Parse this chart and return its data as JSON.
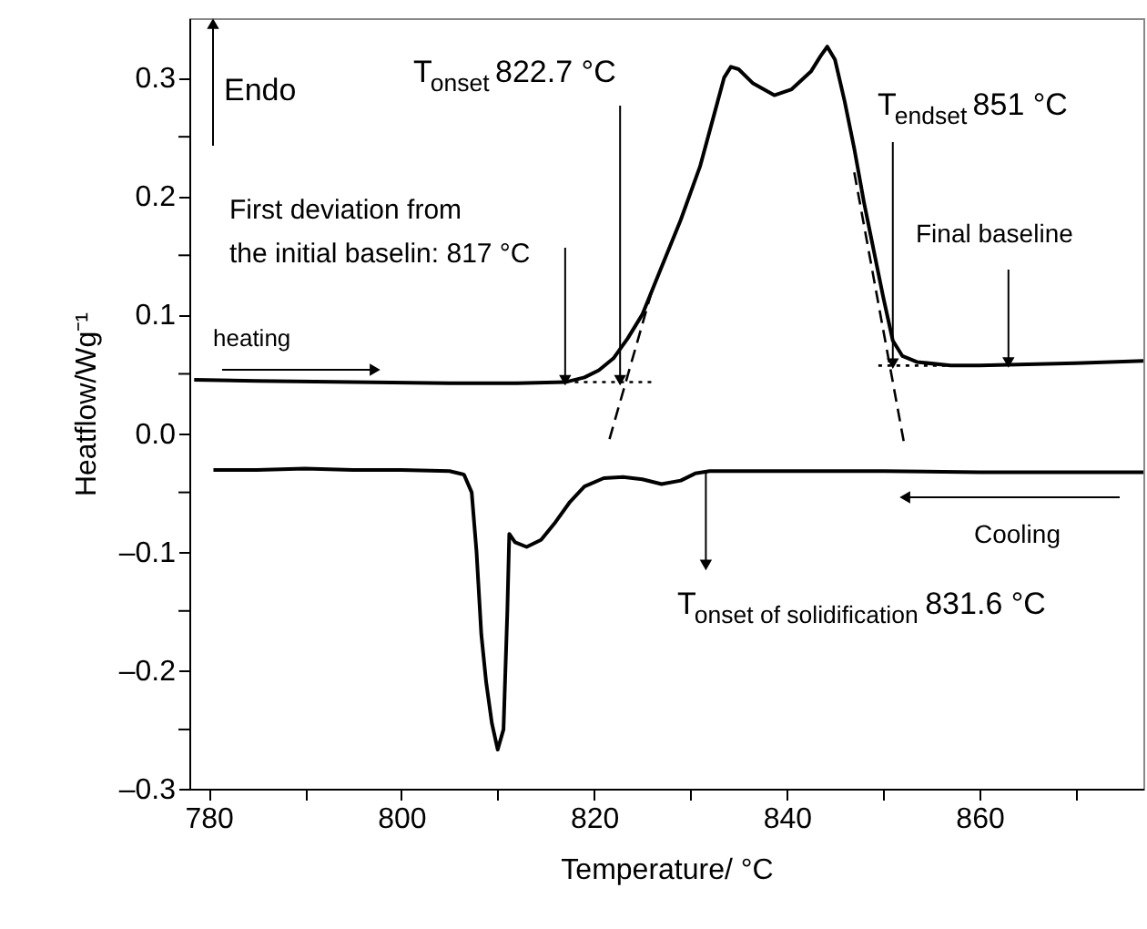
{
  "chart_data": {
    "type": "line",
    "xlabel": "Temperature/ °C",
    "ylabel": "Heatflow/Wg⁻¹",
    "xlim": [
      778,
      877
    ],
    "ylim": [
      -0.3,
      0.35
    ],
    "xticks": [
      780,
      {
        "value": 790,
        "label": null
      },
      800,
      {
        "value": 810,
        "label": null
      },
      820,
      {
        "value": 830,
        "label": null
      },
      840,
      {
        "value": 850,
        "label": null
      },
      860,
      {
        "value": 870,
        "label": null
      }
    ],
    "yticks": [
      {
        "value": -0.3,
        "label": "–0.3"
      },
      {
        "value": -0.25,
        "label": null
      },
      {
        "value": -0.2,
        "label": "–0.2"
      },
      {
        "value": -0.15,
        "label": null
      },
      {
        "value": -0.1,
        "label": "–0.1"
      },
      {
        "value": -0.05,
        "label": null
      },
      {
        "value": 0.0,
        "label": "0.0"
      },
      {
        "value": 0.05,
        "label": null
      },
      {
        "value": 0.1,
        "label": "0.1"
      },
      {
        "value": 0.15,
        "label": null
      },
      {
        "value": 0.2,
        "label": "0.2"
      },
      {
        "value": 0.25,
        "label": null
      },
      {
        "value": 0.3,
        "label": "0.3"
      }
    ],
    "grid": false,
    "series": [
      {
        "color": "#000000",
        "line_style": "solid",
        "x": [
          778.5,
          785,
          795,
          805,
          812,
          817,
          819,
          820.5,
          822,
          823.5,
          825,
          827,
          829,
          831,
          832.5,
          833.5,
          834.2,
          835,
          836.5,
          838.7,
          840.5,
          842.5,
          843.5,
          844.2,
          845,
          846,
          847,
          848,
          849,
          850,
          851,
          852,
          853.5,
          857,
          860,
          865,
          870,
          877
        ],
        "values": [
          0.045,
          0.044,
          0.043,
          0.042,
          0.042,
          0.043,
          0.047,
          0.053,
          0.063,
          0.08,
          0.1,
          0.14,
          0.18,
          0.225,
          0.27,
          0.3,
          0.309,
          0.307,
          0.295,
          0.285,
          0.29,
          0.305,
          0.318,
          0.326,
          0.315,
          0.28,
          0.24,
          0.195,
          0.155,
          0.115,
          0.078,
          0.065,
          0.06,
          0.057,
          0.057,
          0.058,
          0.059,
          0.061
        ]
      },
      {
        "color": "#000000",
        "line_style": "solid",
        "x": [
          780.5,
          785,
          790,
          795,
          800,
          805,
          806.5,
          807.3,
          807.8,
          808.3,
          808.8,
          809.4,
          810,
          810.6,
          811,
          811.2,
          811.8,
          813,
          814.5,
          816,
          817.5,
          819,
          821,
          823,
          825,
          827,
          829,
          830.5,
          832,
          840,
          850,
          860,
          870,
          877
        ],
        "values": [
          -0.031,
          -0.031,
          -0.03,
          -0.031,
          -0.031,
          -0.032,
          -0.035,
          -0.05,
          -0.1,
          -0.17,
          -0.21,
          -0.245,
          -0.267,
          -0.25,
          -0.15,
          -0.085,
          -0.092,
          -0.096,
          -0.09,
          -0.075,
          -0.058,
          -0.045,
          -0.038,
          -0.037,
          -0.039,
          -0.043,
          -0.04,
          -0.034,
          -0.032,
          -0.032,
          -0.032,
          -0.033,
          -0.033,
          -0.033
        ]
      },
      {
        "color": "#000000",
        "line_style": "dotted",
        "x": [
          818,
          826
        ],
        "values": [
          0.043,
          0.043
        ]
      },
      {
        "color": "#000000",
        "line_style": "dashed",
        "x": [
          821.6,
          826
        ],
        "values": [
          -0.005,
          0.12
        ]
      },
      {
        "color": "#000000",
        "line_style": "dotted",
        "x": [
          849.5,
          860
        ],
        "values": [
          0.057,
          0.057
        ]
      },
      {
        "color": "#000000",
        "line_style": "dashed",
        "x": [
          847,
          852.2
        ],
        "values": [
          0.22,
          -0.01
        ]
      }
    ],
    "annotations": [
      "Endo",
      {
        "text": "T$_{onset}$ 822.7 °C",
        "x": 822.7,
        "y": 0.043
      },
      {
        "text": "T$_{endset}$ 851 °C",
        "x": 851,
        "y": 0.057
      },
      {
        "text": "First deviation from\nthe initial baselin: 817 °C",
        "x": 817,
        "y": 0.043
      },
      {
        "text": "Final baseline",
        "x": 863,
        "y": 0.058
      },
      "heating",
      "Cooling",
      {
        "text": "T$_{onset of solidification}$ 831.6 °C",
        "x": 831.6,
        "y": -0.033
      }
    ]
  }
}
